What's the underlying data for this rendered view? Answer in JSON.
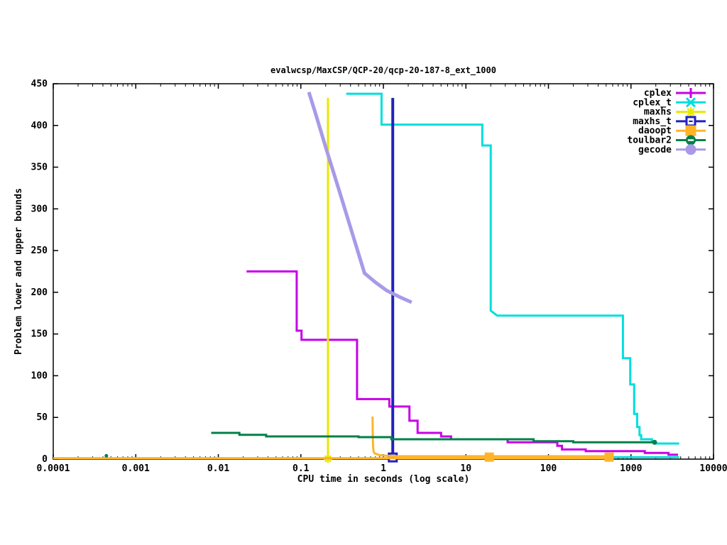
{
  "window": {
    "background": "#ffffff"
  },
  "chart_data": {
    "type": "line",
    "title": "evalwcsp/MaxCSP/QCP-20/qcp-20-187-8_ext_1000",
    "xlabel": "CPU time in seconds (log scale)",
    "ylabel": "Problem lower and upper bounds",
    "x_scale": "log",
    "xlim": [
      0.0001,
      10000
    ],
    "ylim": [
      0,
      450
    ],
    "x_tick_labels": [
      "0.0001",
      "0.001",
      "0.01",
      "0.1",
      "1",
      "10",
      "100",
      "1000",
      "10000"
    ],
    "y_tick_labels": [
      "0",
      "50",
      "100",
      "150",
      "200",
      "250",
      "300",
      "350",
      "400",
      "450"
    ],
    "y_tick_values": [
      0,
      50,
      100,
      150,
      200,
      250,
      300,
      350,
      400,
      450
    ],
    "grid": false,
    "legend_position": "top-right-inside",
    "axis_color": "#000000",
    "series": [
      {
        "name": "cplex",
        "color": "#c800e8",
        "marker": "plus",
        "line_width": 3,
        "segments": [
          [
            [
              0.022,
              225
            ],
            [
              0.089,
              225
            ],
            [
              0.089,
              154
            ],
            [
              0.102,
              154
            ],
            [
              0.102,
              143
            ],
            [
              0.48,
              143
            ],
            [
              0.48,
              72
            ],
            [
              1.18,
              72
            ],
            [
              1.18,
              63
            ],
            [
              2.07,
              63
            ],
            [
              2.07,
              46
            ],
            [
              2.6,
              46
            ],
            [
              2.6,
              31.5
            ],
            [
              5,
              31.5
            ],
            [
              5,
              27.2
            ],
            [
              6.6,
              27.2
            ],
            [
              6.6,
              23.8
            ],
            [
              32,
              23.8
            ],
            [
              32,
              20.2
            ],
            [
              128,
              20.2
            ],
            [
              128,
              15.9
            ],
            [
              146,
              15.9
            ],
            [
              146,
              11.6
            ],
            [
              283,
              11.6
            ],
            [
              283,
              9.6
            ],
            [
              1470,
              9.6
            ],
            [
              1470,
              7.4
            ],
            [
              2850,
              7.4
            ],
            [
              2850,
              5.4
            ],
            [
              3715,
              5.4
            ]
          ]
        ],
        "markers_at": []
      },
      {
        "name": "cplex_t",
        "color": "#00dede",
        "marker": "x",
        "line_width": 3,
        "segments": [
          [
            [
              0.355,
              438
            ],
            [
              0.95,
              438
            ],
            [
              0.95,
              401
            ],
            [
              15.8,
              401
            ],
            [
              15.8,
              376
            ],
            [
              20,
              376
            ],
            [
              20,
              178
            ],
            [
              24,
              172
            ],
            [
              798,
              172
            ],
            [
              798,
              121
            ],
            [
              980,
              121
            ],
            [
              980,
              89.6
            ],
            [
              1092,
              89.6
            ],
            [
              1092,
              54.2
            ],
            [
              1190,
              54.2
            ],
            [
              1190,
              38.5
            ],
            [
              1270,
              38.5
            ],
            [
              1270,
              28.7
            ],
            [
              1330,
              28.7
            ],
            [
              1330,
              23.8
            ],
            [
              1794,
              23.8
            ],
            [
              1794,
              21
            ],
            [
              1980,
              21
            ],
            [
              1980,
              18.7
            ],
            [
              3840,
              18.7
            ]
          ],
          [
            [
              480,
              2.3
            ],
            [
              3840,
              2.3
            ]
          ]
        ],
        "markers_at": []
      },
      {
        "name": "maxhs",
        "color": "#e8e800",
        "marker": "star",
        "line_width": 3,
        "segments": [
          [
            [
              0.213,
              0.5
            ],
            [
              0.213,
              433
            ]
          ]
        ],
        "markers_at": [
          [
            0.213,
            0.5,
            6
          ]
        ]
      },
      {
        "name": "maxhs_t",
        "color": "#2222bb",
        "marker": "square-open",
        "line_width": 4,
        "segments": [
          [
            [
              1.3,
              2
            ],
            [
              1.3,
              433
            ]
          ]
        ],
        "markers_at": [
          [
            1.3,
            2,
            5.5
          ]
        ]
      },
      {
        "name": "daoopt",
        "color": "#ffb428",
        "marker": "square-fill",
        "line_width": 3,
        "segments": [
          [
            [
              0.74,
              51
            ],
            [
              0.745,
              26
            ],
            [
              0.75,
              15
            ],
            [
              0.76,
              9.6
            ],
            [
              0.78,
              7
            ],
            [
              0.83,
              6
            ],
            [
              0.9,
              4.8
            ],
            [
              1.1,
              4
            ],
            [
              1.5,
              3.5
            ],
            [
              19.2,
              3.5
            ],
            [
              543,
              3.5
            ]
          ],
          [
            [
              0.0001,
              1.2
            ],
            [
              543,
              1.2
            ]
          ]
        ],
        "markers_at": [
          [
            19.2,
            2.4,
            6.5
          ],
          [
            543,
            2.4,
            6.5
          ]
        ]
      },
      {
        "name": "toulbar2",
        "color": "#008048",
        "marker": "circle-open",
        "line_width": 3,
        "segments": [
          [
            [
              0.0082,
              31.5
            ],
            [
              0.018,
              31.5
            ],
            [
              0.018,
              29.2
            ],
            [
              0.038,
              29.2
            ],
            [
              0.038,
              27.2
            ],
            [
              0.5,
              27.2
            ],
            [
              0.5,
              26.4
            ],
            [
              1.25,
              26.4
            ],
            [
              1.25,
              23.8
            ],
            [
              66,
              23.8
            ],
            [
              66,
              21.5
            ],
            [
              200,
              21.5
            ],
            [
              200,
              20.2
            ],
            [
              1930,
              20.2
            ]
          ]
        ],
        "markers_at": [
          [
            0.00044,
            4,
            2.5
          ],
          [
            1930,
            20.2,
            3.5
          ]
        ]
      },
      {
        "name": "gecode",
        "color": "#a89ae8",
        "marker": "circle-fill",
        "line_width": 5,
        "segments": [
          [
            [
              0.125,
              440
            ],
            [
              0.15,
              415
            ],
            [
              0.2,
              374
            ],
            [
              0.3,
              318
            ],
            [
              0.45,
              261
            ],
            [
              0.59,
              223
            ],
            [
              0.8,
              212
            ],
            [
              1.1,
              202
            ],
            [
              1.6,
              194
            ],
            [
              2.2,
              188
            ]
          ]
        ],
        "markers_at": []
      }
    ]
  }
}
